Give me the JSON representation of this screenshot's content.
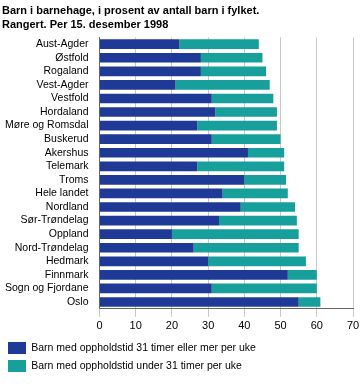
{
  "chart_data": {
    "type": "bar",
    "orientation": "horizontal",
    "stacked": true,
    "title": "Barn i barnehage, i prosent av antall barn i fylket.",
    "subtitle": "Rangert. Per 15. desember 1998",
    "categories": [
      "Aust-Agder",
      "Østfold",
      "Rogaland",
      "Vest-Agder",
      "Vestfold",
      "Hordaland",
      "Møre og Romsdal",
      "Buskerud",
      "Akershus",
      "Telemark",
      "Troms",
      "Hele landet",
      "Nordland",
      "Sør-Trøndelag",
      "Oppland",
      "Nord-Trøndelag",
      "Hedmark",
      "Finnmark",
      "Sogn og Fjordane",
      "Oslo"
    ],
    "series": [
      {
        "name": "Barn med oppholdstid 31 timer eller mer per uke",
        "color": "#1f3a96",
        "values": [
          22,
          28,
          28,
          21,
          31,
          32,
          27,
          31,
          41,
          27,
          40,
          34,
          39,
          33,
          20,
          26,
          30,
          52,
          31,
          55
        ]
      },
      {
        "name": "Barn med oppholdstid under 31 timer per uke",
        "color": "#17a09b",
        "values": [
          22,
          17,
          18,
          26,
          17,
          17,
          22,
          19,
          10,
          24,
          11.5,
          18,
          15,
          21.5,
          35,
          29,
          27,
          8,
          29,
          6
        ]
      }
    ],
    "xlim": [
      0,
      70
    ],
    "xticks": [
      0,
      10,
      20,
      30,
      40,
      50,
      60,
      70
    ],
    "grid": true,
    "legend": "bottom"
  }
}
